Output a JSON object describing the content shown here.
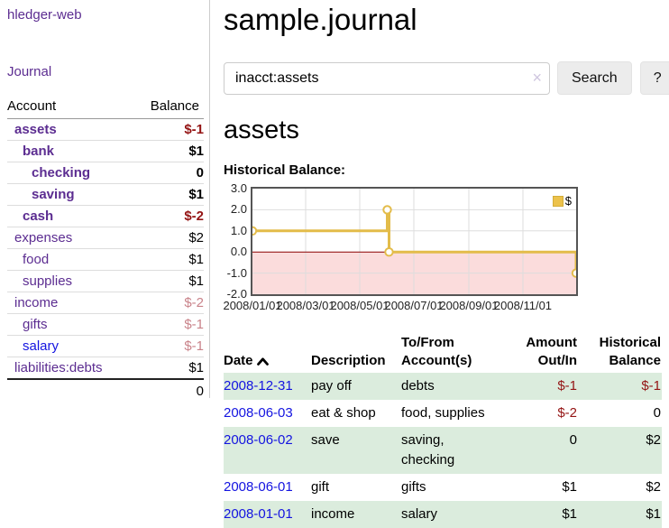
{
  "sidebar": {
    "brand": "hledger-web",
    "nav_journal": "Journal",
    "table": {
      "col_account": "Account",
      "col_balance": "Balance",
      "accounts": [
        {
          "name": "assets",
          "balance": "$-1"
        },
        {
          "name": "bank",
          "balance": "$1"
        },
        {
          "name": "checking",
          "balance": "0"
        },
        {
          "name": "saving",
          "balance": "$1"
        },
        {
          "name": "cash",
          "balance": "$-2"
        },
        {
          "name": "expenses",
          "balance": "$2"
        },
        {
          "name": "food",
          "balance": "$1"
        },
        {
          "name": "supplies",
          "balance": "$1"
        },
        {
          "name": "income",
          "balance": "$-2"
        },
        {
          "name": "gifts",
          "balance": "$-1"
        },
        {
          "name": "salary",
          "balance": "$-1"
        },
        {
          "name": "liabilities:debts",
          "balance": "$1"
        }
      ],
      "total": "0"
    }
  },
  "header": {
    "title": "sample.journal"
  },
  "search": {
    "value": "inacct:assets",
    "clear_icon": "×",
    "button_label": "Search",
    "help_label": "?"
  },
  "account_page": {
    "heading": "assets",
    "chart_title": "Historical Balance:"
  },
  "chart_data": {
    "type": "line",
    "step": true,
    "title": "Historical Balance",
    "series": [
      {
        "name": "$",
        "points": [
          [
            "2008-01-01",
            1
          ],
          [
            "2008-06-01",
            2
          ],
          [
            "2008-06-03",
            0
          ],
          [
            "2008-12-31",
            -1
          ]
        ]
      }
    ],
    "x_range": [
      "2008-01-01",
      "2008-12-31"
    ],
    "ylim": [
      -2,
      3
    ],
    "y_ticks": [
      3.0,
      2.0,
      1.0,
      0.0,
      -1.0,
      -2.0
    ],
    "x_ticks": [
      "2008/01/01",
      "2008/03/01",
      "2008/05/01",
      "2008/07/01",
      "2008/09/01",
      "2008/11/01"
    ],
    "legend": "$",
    "legend_position": "top-right",
    "grid": true,
    "negative_region": true
  },
  "register_table": {
    "headers": {
      "date": "Date",
      "description": "Description",
      "tofrom": "To/From Account(s)",
      "amount": "Amount Out/In",
      "balance": "Historical Balance"
    },
    "rows": [
      {
        "date": "2008-12-31",
        "description": "pay off",
        "accounts": "debts",
        "amount": "$-1",
        "balance": "$-1"
      },
      {
        "date": "2008-06-03",
        "description": "eat & shop",
        "accounts": "food, supplies",
        "amount": "$-2",
        "balance": "0"
      },
      {
        "date": "2008-06-02",
        "description": "save",
        "accounts": "saving,\nchecking",
        "amount": "0",
        "balance": "$2"
      },
      {
        "date": "2008-06-01",
        "description": "gift",
        "accounts": "gifts",
        "amount": "$1",
        "balance": "$2"
      },
      {
        "date": "2008-01-01",
        "description": "income",
        "accounts": "salary",
        "amount": "$1",
        "balance": "$1"
      }
    ]
  },
  "colors": {
    "link_purple": "#5c2d91",
    "link_blue": "#1414e0",
    "negative_strong": "#941414",
    "negative_muted": "#c9838a",
    "row_stripe_green": "#dbecdd",
    "chart_line_gold": "#e3bc4a",
    "chart_negative_bg": "#fbdcdc",
    "chart_zero_line": "#8b0000",
    "chart_grid": "#dddddd",
    "chart_border": "#555555",
    "button_bg": "#ececec"
  }
}
